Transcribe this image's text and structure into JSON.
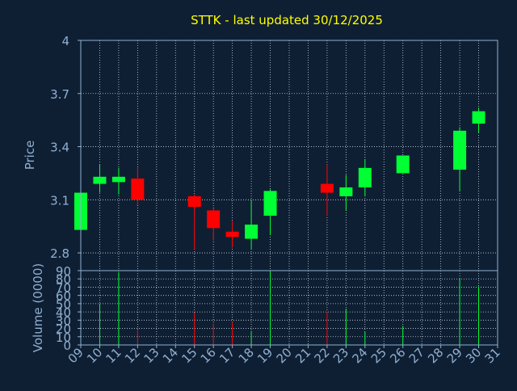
{
  "chart_data": {
    "type": "candlestick",
    "title": "STTK - last updated 30/12/2025",
    "xlabel": "Day",
    "price_panel": {
      "ylabel": "Price",
      "ylim": [
        2.7,
        4.0
      ],
      "yticks": [
        "2.8",
        "3.1",
        "3.4",
        "3.7",
        "4"
      ],
      "ytick_values": [
        2.8,
        3.1,
        3.4,
        3.7,
        4.0
      ],
      "grid": true
    },
    "volume_panel": {
      "ylabel": "Volume (0000)",
      "ylim": [
        0,
        90
      ],
      "yticks": [
        "0",
        "10",
        "20",
        "30",
        "40",
        "50",
        "60",
        "70",
        "80",
        "90"
      ],
      "ytick_values": [
        0,
        10,
        20,
        30,
        40,
        50,
        60,
        70,
        80,
        90
      ],
      "grid": true
    },
    "x_day_range": [
      9,
      31
    ],
    "x_tick_labels": [
      "09",
      "10",
      "11",
      "12",
      "13",
      "14",
      "15",
      "16",
      "17",
      "18",
      "19",
      "20",
      "21",
      "22",
      "23",
      "24",
      "25",
      "26",
      "27",
      "28",
      "29",
      "30",
      "31"
    ],
    "candles": [
      {
        "day": 9,
        "open": 2.93,
        "high": 3.14,
        "low": 2.93,
        "close": 3.14
      },
      {
        "day": 10,
        "open": 3.19,
        "high": 3.3,
        "low": 3.14,
        "close": 3.23
      },
      {
        "day": 11,
        "open": 3.2,
        "high": 3.28,
        "low": 3.13,
        "close": 3.23
      },
      {
        "day": 12,
        "open": 3.22,
        "high": 3.28,
        "low": 3.07,
        "close": 3.1
      },
      {
        "day": 15,
        "open": 3.12,
        "high": 3.13,
        "low": 2.82,
        "close": 3.06
      },
      {
        "day": 16,
        "open": 3.04,
        "high": 3.05,
        "low": 2.87,
        "close": 2.94
      },
      {
        "day": 17,
        "open": 2.92,
        "high": 2.98,
        "low": 2.83,
        "close": 2.89
      },
      {
        "day": 18,
        "open": 2.88,
        "high": 3.1,
        "low": 2.82,
        "close": 2.96
      },
      {
        "day": 19,
        "open": 3.01,
        "high": 3.16,
        "low": 2.9,
        "close": 3.15
      },
      {
        "day": 22,
        "open": 3.19,
        "high": 3.3,
        "low": 3.01,
        "close": 3.14
      },
      {
        "day": 23,
        "open": 3.12,
        "high": 3.24,
        "low": 3.04,
        "close": 3.17
      },
      {
        "day": 24,
        "open": 3.17,
        "high": 3.33,
        "low": 3.12,
        "close": 3.28
      },
      {
        "day": 26,
        "open": 3.25,
        "high": 3.35,
        "low": 3.25,
        "close": 3.35
      },
      {
        "day": 29,
        "open": 3.27,
        "high": 3.51,
        "low": 3.15,
        "close": 3.49
      },
      {
        "day": 30,
        "open": 3.53,
        "high": 3.62,
        "low": 3.48,
        "close": 3.6
      }
    ],
    "volume": [
      {
        "day": 10,
        "value": 50,
        "up": true
      },
      {
        "day": 11,
        "value": 88,
        "up": true
      },
      {
        "day": 12,
        "value": 18,
        "up": false
      },
      {
        "day": 15,
        "value": 39,
        "up": false
      },
      {
        "day": 16,
        "value": 26,
        "up": false
      },
      {
        "day": 17,
        "value": 28,
        "up": false
      },
      {
        "day": 18,
        "value": 17,
        "up": true
      },
      {
        "day": 19,
        "value": 90,
        "up": true
      },
      {
        "day": 22,
        "value": 40,
        "up": false
      },
      {
        "day": 23,
        "value": 44,
        "up": true
      },
      {
        "day": 24,
        "value": 16,
        "up": true
      },
      {
        "day": 26,
        "value": 23,
        "up": true
      },
      {
        "day": 29,
        "value": 80,
        "up": true
      },
      {
        "day": 30,
        "value": 71,
        "up": true
      }
    ],
    "colors": {
      "background": "#0f1f33",
      "axis": "#8fb0d0",
      "grid": "#c8d4e0",
      "up": "#00ff33",
      "down": "#ff0000",
      "title": "#ffff00",
      "label": "#8fb0d0"
    }
  }
}
